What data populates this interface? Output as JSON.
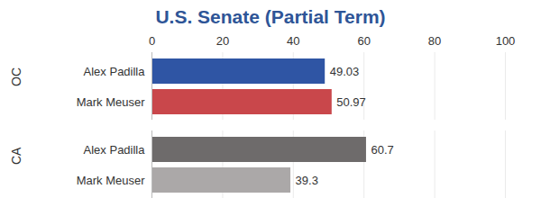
{
  "chart_data": {
    "type": "bar",
    "title": "U.S. Senate (Partial Term)",
    "orientation": "horizontal",
    "categories": [
      "OC",
      "CA"
    ],
    "series": [
      {
        "name": "Alex Padilla",
        "values": [
          49.03,
          60.7
        ],
        "colors": [
          "#2F55A4",
          "#6E6B6B"
        ]
      },
      {
        "name": "Mark Meuser",
        "values": [
          50.97,
          39.3
        ],
        "colors": [
          "#C9474B",
          "#ABA8A8"
        ]
      }
    ],
    "xlim": [
      0,
      100
    ],
    "xticks": [
      0,
      20,
      40,
      60,
      80,
      100
    ],
    "grid": true,
    "data_labels": true
  }
}
